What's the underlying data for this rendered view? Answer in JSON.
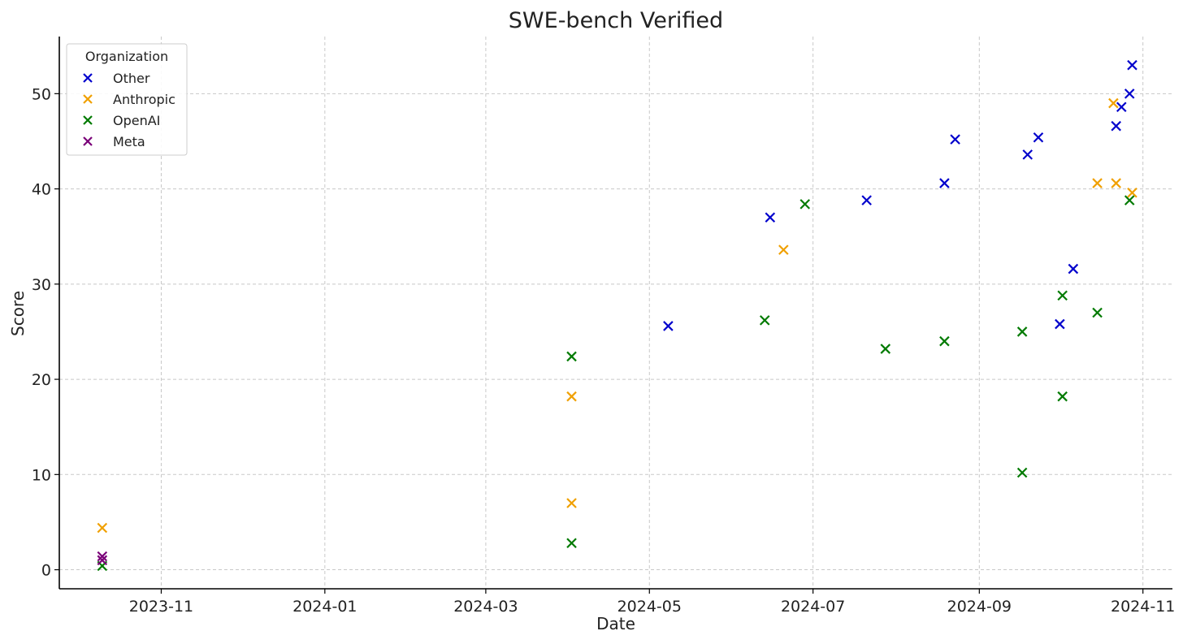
{
  "chart_data": {
    "type": "scatter",
    "title": "SWE-bench Verified",
    "xlabel": "Date",
    "ylabel": "Score",
    "x_type": "date",
    "xlim": [
      "2023-09-24",
      "2024-11-12"
    ],
    "ylim": [
      -2,
      56
    ],
    "x_ticks": [
      "2023-11",
      "2024-01",
      "2024-03",
      "2024-05",
      "2024-07",
      "2024-09",
      "2024-11"
    ],
    "y_ticks": [
      0,
      10,
      20,
      30,
      40,
      50
    ],
    "grid": true,
    "legend": {
      "title": "Organization",
      "position": "top-left"
    },
    "series": [
      {
        "name": "Other",
        "color": "#0000cc",
        "marker": "x",
        "points": [
          {
            "x": "2024-05-08",
            "y": 25.6
          },
          {
            "x": "2024-06-15",
            "y": 37.0
          },
          {
            "x": "2024-07-21",
            "y": 38.8
          },
          {
            "x": "2024-08-19",
            "y": 40.6
          },
          {
            "x": "2024-08-23",
            "y": 45.2
          },
          {
            "x": "2024-09-19",
            "y": 43.6
          },
          {
            "x": "2024-09-23",
            "y": 45.4
          },
          {
            "x": "2024-10-01",
            "y": 25.8
          },
          {
            "x": "2024-10-06",
            "y": 31.6
          },
          {
            "x": "2024-10-22",
            "y": 46.6
          },
          {
            "x": "2024-10-24",
            "y": 48.6
          },
          {
            "x": "2024-10-27",
            "y": 50.0
          },
          {
            "x": "2024-10-28",
            "y": 53.0
          }
        ]
      },
      {
        "name": "Anthropic",
        "color": "#f0a000",
        "marker": "x",
        "points": [
          {
            "x": "2023-10-10",
            "y": 4.4
          },
          {
            "x": "2024-04-02",
            "y": 18.2
          },
          {
            "x": "2024-04-02",
            "y": 7.0
          },
          {
            "x": "2024-06-20",
            "y": 33.6
          },
          {
            "x": "2024-10-15",
            "y": 40.6
          },
          {
            "x": "2024-10-22",
            "y": 40.6
          },
          {
            "x": "2024-10-21",
            "y": 49.0
          },
          {
            "x": "2024-10-28",
            "y": 39.6
          }
        ]
      },
      {
        "name": "OpenAI",
        "color": "#007a00",
        "marker": "x",
        "points": [
          {
            "x": "2023-10-10",
            "y": 0.4
          },
          {
            "x": "2024-04-02",
            "y": 22.4
          },
          {
            "x": "2024-04-02",
            "y": 2.8
          },
          {
            "x": "2024-06-13",
            "y": 26.2
          },
          {
            "x": "2024-06-28",
            "y": 38.4
          },
          {
            "x": "2024-07-28",
            "y": 23.2
          },
          {
            "x": "2024-08-19",
            "y": 24.0
          },
          {
            "x": "2024-09-17",
            "y": 25.0
          },
          {
            "x": "2024-09-17",
            "y": 10.2
          },
          {
            "x": "2024-10-02",
            "y": 28.8
          },
          {
            "x": "2024-10-02",
            "y": 18.2
          },
          {
            "x": "2024-10-15",
            "y": 27.0
          },
          {
            "x": "2024-10-27",
            "y": 38.8
          }
        ]
      },
      {
        "name": "Meta",
        "color": "#7a0078",
        "marker": "x",
        "points": [
          {
            "x": "2023-10-10",
            "y": 1.4
          },
          {
            "x": "2023-10-10",
            "y": 1.0
          }
        ]
      }
    ]
  }
}
